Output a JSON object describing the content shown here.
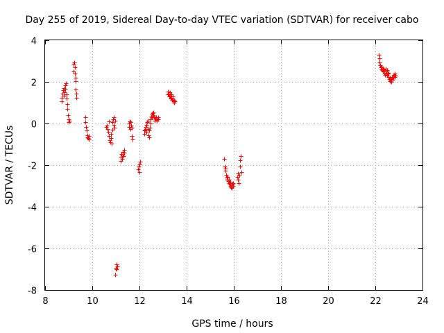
{
  "chart_data": {
    "type": "scatter",
    "title": "Day 255 of 2019, Sidereal Day-to-day VTEC variation (SDTVAR) for receiver cabo",
    "xlabel": "GPS time / hours",
    "ylabel": "SDTVAR / TECUs",
    "xlim": [
      8,
      24
    ],
    "ylim": [
      -8,
      4
    ],
    "xticks": [
      8,
      10,
      12,
      14,
      16,
      18,
      20,
      22,
      24
    ],
    "yticks": [
      -8,
      -6,
      -4,
      -2,
      0,
      2,
      4
    ],
    "xtick_labels": [
      "8",
      "10",
      "12",
      "14",
      "16",
      "18",
      "20",
      "22",
      "24"
    ],
    "ytick_labels": [
      "-8",
      "-6",
      "-4",
      "-2",
      "0",
      "2",
      "4"
    ],
    "grid": true,
    "marker": "+",
    "color": "#ff0000",
    "series": [
      {
        "name": "SDTVAR",
        "points": [
          [
            8.7,
            1.05
          ],
          [
            8.72,
            1.25
          ],
          [
            8.74,
            1.45
          ],
          [
            8.76,
            1.6
          ],
          [
            8.78,
            1.35
          ],
          [
            8.8,
            1.7
          ],
          [
            8.82,
            1.5
          ],
          [
            8.84,
            1.85
          ],
          [
            8.86,
            1.65
          ],
          [
            8.88,
            1.95
          ],
          [
            8.9,
            1.4
          ],
          [
            8.92,
            1.2
          ],
          [
            8.93,
            0.95
          ],
          [
            8.95,
            0.7
          ],
          [
            8.97,
            0.4
          ],
          [
            8.99,
            0.2
          ],
          [
            9.01,
            0.05
          ],
          [
            9.03,
            0.15
          ],
          [
            9.2,
            2.5
          ],
          [
            9.22,
            2.85
          ],
          [
            9.24,
            2.95
          ],
          [
            9.25,
            2.7
          ],
          [
            9.27,
            2.4
          ],
          [
            9.28,
            2.2
          ],
          [
            9.3,
            2.05
          ],
          [
            9.3,
            1.65
          ],
          [
            9.31,
            1.45
          ],
          [
            9.32,
            1.25
          ],
          [
            9.7,
            0.3
          ],
          [
            9.72,
            0.05
          ],
          [
            9.74,
            -0.15
          ],
          [
            9.76,
            -0.35
          ],
          [
            9.78,
            -0.55
          ],
          [
            9.8,
            -0.65
          ],
          [
            9.82,
            -0.7
          ],
          [
            9.84,
            -0.6
          ],
          [
            9.86,
            -0.75
          ],
          [
            10.6,
            -0.15
          ],
          [
            10.62,
            -0.1
          ],
          [
            10.65,
            -0.25
          ],
          [
            10.68,
            -0.4
          ],
          [
            10.7,
            0.1
          ],
          [
            10.72,
            -0.6
          ],
          [
            10.74,
            -0.8
          ],
          [
            10.76,
            -0.9
          ],
          [
            10.78,
            -0.7
          ],
          [
            10.8,
            -0.5
          ],
          [
            10.82,
            -0.95
          ],
          [
            10.84,
            -0.3
          ],
          [
            10.86,
            0.05
          ],
          [
            10.88,
            0.2
          ],
          [
            10.9,
            -0.05
          ],
          [
            10.92,
            0.3
          ],
          [
            10.94,
            -0.2
          ],
          [
            10.96,
            0.15
          ],
          [
            10.98,
            -7.25
          ],
          [
            11.0,
            -6.95
          ],
          [
            11.02,
            -6.75
          ],
          [
            11.04,
            -7.0
          ],
          [
            11.06,
            -6.85
          ],
          [
            11.2,
            -1.8
          ],
          [
            11.22,
            -1.6
          ],
          [
            11.24,
            -1.45
          ],
          [
            11.26,
            -1.7
          ],
          [
            11.28,
            -1.5
          ],
          [
            11.3,
            -1.35
          ],
          [
            11.32,
            -1.55
          ],
          [
            11.34,
            -1.4
          ],
          [
            11.36,
            -1.25
          ],
          [
            11.55,
            0.0
          ],
          [
            11.57,
            -0.15
          ],
          [
            11.59,
            0.1
          ],
          [
            11.61,
            -0.25
          ],
          [
            11.63,
            0.05
          ],
          [
            11.65,
            -0.1
          ],
          [
            11.67,
            -0.2
          ],
          [
            11.69,
            -0.6
          ],
          [
            11.71,
            -0.75
          ],
          [
            11.95,
            -2.2
          ],
          [
            11.97,
            -2.05
          ],
          [
            11.99,
            -1.95
          ],
          [
            12.01,
            -2.35
          ],
          [
            12.03,
            -1.85
          ],
          [
            12.2,
            -0.35
          ],
          [
            12.22,
            -0.5
          ],
          [
            12.24,
            -0.3
          ],
          [
            12.26,
            -0.15
          ],
          [
            12.28,
            -0.4
          ],
          [
            12.3,
            -0.05
          ],
          [
            12.32,
            0.05
          ],
          [
            12.34,
            -0.25
          ],
          [
            12.36,
            0.15
          ],
          [
            12.38,
            -0.55
          ],
          [
            12.4,
            -0.65
          ],
          [
            12.42,
            -0.35
          ],
          [
            12.44,
            -0.2
          ],
          [
            12.46,
            0.0
          ],
          [
            12.48,
            0.2
          ],
          [
            12.5,
            0.35
          ],
          [
            12.52,
            0.45
          ],
          [
            12.54,
            0.3
          ],
          [
            12.56,
            0.5
          ],
          [
            12.58,
            0.4
          ],
          [
            12.6,
            0.55
          ],
          [
            12.62,
            0.35
          ],
          [
            12.64,
            0.25
          ],
          [
            12.66,
            0.15
          ],
          [
            12.68,
            0.25
          ],
          [
            12.7,
            0.2
          ],
          [
            12.72,
            0.3
          ],
          [
            12.74,
            0.15
          ],
          [
            12.76,
            0.25
          ],
          [
            12.78,
            0.2
          ],
          [
            12.8,
            0.3
          ],
          [
            13.2,
            1.4
          ],
          [
            13.22,
            1.55
          ],
          [
            13.24,
            1.45
          ],
          [
            13.26,
            1.3
          ],
          [
            13.28,
            1.5
          ],
          [
            13.3,
            1.35
          ],
          [
            13.32,
            1.2
          ],
          [
            13.34,
            1.4
          ],
          [
            13.36,
            1.25
          ],
          [
            13.38,
            1.15
          ],
          [
            13.4,
            1.3
          ],
          [
            13.42,
            1.2
          ],
          [
            13.44,
            1.05
          ],
          [
            13.46,
            1.1
          ],
          [
            13.48,
            1.0
          ],
          [
            13.5,
            1.05
          ],
          [
            15.6,
            -1.7
          ],
          [
            15.62,
            -2.05
          ],
          [
            15.64,
            -2.25
          ],
          [
            15.66,
            -2.15
          ],
          [
            15.68,
            -2.45
          ],
          [
            15.7,
            -2.6
          ],
          [
            15.72,
            -2.7
          ],
          [
            15.74,
            -2.55
          ],
          [
            15.76,
            -2.75
          ],
          [
            15.78,
            -2.85
          ],
          [
            15.8,
            -2.7
          ],
          [
            15.82,
            -2.9
          ],
          [
            15.84,
            -3.0
          ],
          [
            15.86,
            -2.8
          ],
          [
            15.88,
            -3.05
          ],
          [
            15.9,
            -2.95
          ],
          [
            15.92,
            -3.1
          ],
          [
            15.94,
            -2.9
          ],
          [
            15.96,
            -2.85
          ],
          [
            15.98,
            -3.0
          ],
          [
            16.15,
            -2.55
          ],
          [
            16.17,
            -2.4
          ],
          [
            16.19,
            -2.7
          ],
          [
            16.21,
            -2.85
          ],
          [
            16.23,
            -2.5
          ],
          [
            16.25,
            -2.05
          ],
          [
            16.27,
            -1.75
          ],
          [
            16.29,
            -1.55
          ],
          [
            16.31,
            -2.35
          ]
        ]
      }
    ]
  },
  "page": {
    "overflow_points": [
      [
        22.15,
        3.3
      ],
      [
        22.17,
        3.15
      ],
      [
        22.19,
        2.95
      ],
      [
        22.21,
        2.8
      ],
      [
        22.23,
        2.7
      ],
      [
        22.25,
        2.6
      ],
      [
        22.27,
        2.75
      ],
      [
        22.29,
        2.55
      ],
      [
        22.31,
        2.65
      ],
      [
        22.33,
        2.5
      ],
      [
        22.35,
        2.6
      ],
      [
        22.37,
        2.4
      ],
      [
        22.39,
        2.55
      ],
      [
        22.41,
        2.35
      ],
      [
        22.43,
        2.5
      ],
      [
        22.45,
        2.65
      ],
      [
        22.47,
        2.45
      ],
      [
        22.49,
        2.3
      ],
      [
        22.51,
        2.55
      ],
      [
        22.53,
        2.4
      ],
      [
        22.55,
        2.25
      ],
      [
        22.57,
        2.45
      ],
      [
        22.59,
        2.15
      ],
      [
        22.61,
        2.05
      ],
      [
        22.63,
        2.2
      ],
      [
        22.65,
        2.1
      ],
      [
        22.67,
        2.0
      ],
      [
        22.69,
        2.15
      ],
      [
        22.71,
        2.25
      ],
      [
        22.73,
        2.1
      ],
      [
        22.75,
        2.2
      ],
      [
        22.77,
        2.3
      ],
      [
        22.79,
        2.35
      ],
      [
        22.81,
        2.25
      ],
      [
        22.83,
        2.4
      ],
      [
        22.85,
        2.3
      ]
    ]
  }
}
